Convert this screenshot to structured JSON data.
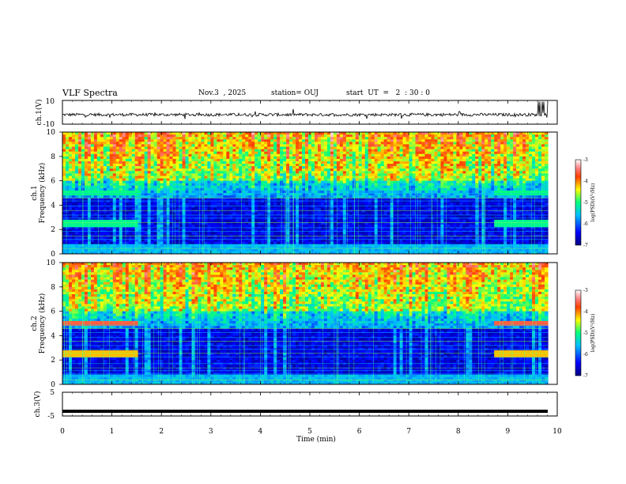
{
  "header": {
    "title": "VLF Spectra",
    "date": "Nov.3  , 2025",
    "station": "station= OUJ",
    "start": "start  UT  =   2  : 30 : 0"
  },
  "chart_data": [
    {
      "type": "line",
      "ylabel": "ch.1(V)",
      "yticks": [
        "10",
        "-10"
      ],
      "ylim": [
        -10,
        10
      ],
      "x": [
        0,
        1,
        2,
        3,
        4,
        5,
        6,
        7,
        8,
        9,
        10
      ],
      "description_values": "noisy waveform around -2 V with spikes near 9.5-9.8 min"
    },
    {
      "type": "heatmap",
      "ylabel": "Frequency  (kHz)",
      "channel_label": "ch.1",
      "yticks": [
        "0",
        "2",
        "4",
        "6",
        "8",
        "10"
      ],
      "ylim": [
        0,
        10
      ],
      "colorbar": {
        "label": "log(PSD)(V²/Hz)",
        "ticks": [
          "-3",
          "-4",
          "-5",
          "-6",
          "-7"
        ],
        "range": [
          -7,
          -3
        ]
      }
    },
    {
      "type": "heatmap",
      "ylabel": "Frequency  (kHz)",
      "channel_label": "ch.2",
      "yticks": [
        "0",
        "2",
        "4",
        "6",
        "8",
        "10"
      ],
      "ylim": [
        0,
        10
      ],
      "colorbar": {
        "label": "log(PSD)(V²/Hz)",
        "ticks": [
          "-3",
          "-4",
          "-5",
          "-6",
          "-7"
        ],
        "range": [
          -7,
          -3
        ]
      }
    },
    {
      "type": "line",
      "ylabel": "ch.3(V)",
      "yticks": [
        "5",
        "-5"
      ],
      "ylim": [
        -5,
        5
      ],
      "value": -3
    }
  ],
  "xaxis": {
    "label": "Time  (min)",
    "ticks": [
      "0",
      "1",
      "2",
      "3",
      "4",
      "5",
      "6",
      "7",
      "8",
      "9",
      "10"
    ],
    "xlim": [
      0,
      10
    ]
  }
}
